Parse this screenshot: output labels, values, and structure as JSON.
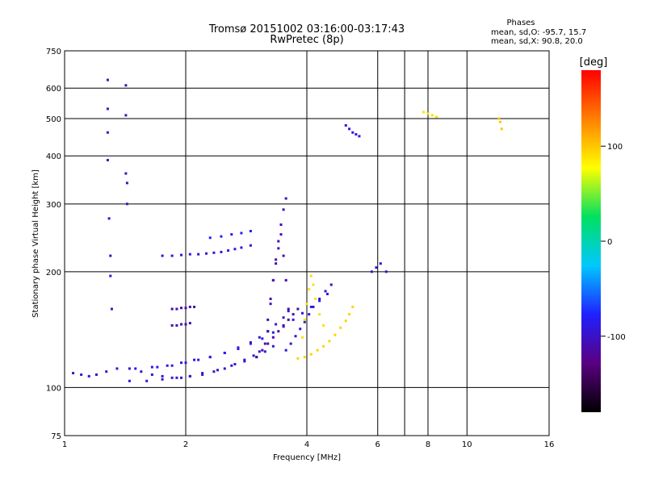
{
  "chart_data": {
    "type": "scatter",
    "title": "Tromsø 20151002 03:16:00-03:17:43",
    "subtitle": "RwPretec (8p)",
    "xlabel": "Frequency [MHz]",
    "ylabel": "Stationary phase Virtual Height [km]",
    "x_scale": "log",
    "y_scale": "log",
    "xlim": [
      1,
      16
    ],
    "ylim": [
      75,
      750
    ],
    "x_ticks": [
      1,
      2,
      4,
      6,
      8,
      10,
      16
    ],
    "x_gridlines": [
      2,
      4,
      6,
      7,
      8,
      10
    ],
    "y_ticks": [
      75,
      100,
      200,
      300,
      400,
      500,
      600,
      750
    ],
    "y_gridlines": [
      100,
      200,
      300,
      400,
      500,
      600
    ],
    "grid": true,
    "phase_stats": {
      "heading": "Phases",
      "line_o": "mean, sd,O: -95.7, 15.7",
      "line_x": "mean, sd,X:  90.8, 20.0"
    },
    "colorbar": {
      "label": "[deg]",
      "range": [
        -180,
        180
      ],
      "ticks": [
        100,
        0,
        -100
      ],
      "colors": [
        "#000000",
        "#5a0080",
        "#2020ff",
        "#00c8ff",
        "#00e060",
        "#ffff00",
        "#ff8000",
        "#ff0000"
      ]
    },
    "traces": [
      {
        "name": "",
        "phase": -95,
        "x": [
          1.05,
          1.1,
          1.15,
          1.2,
          1.27,
          1.35,
          1.45,
          1.55,
          1.65,
          1.75,
          1.85,
          1.95,
          2.05,
          2.2,
          2.35,
          2.5,
          2.65,
          2.8,
          2.95,
          3.05
        ],
        "y": [
          109,
          108,
          107,
          108,
          110,
          112,
          112,
          110,
          108,
          107,
          106,
          106,
          107,
          108,
          110,
          112,
          115,
          118,
          121,
          124
        ]
      },
      {
        "name": "",
        "phase": -95,
        "x": [
          1.45,
          1.6,
          1.75,
          1.9,
          2.05,
          2.2,
          2.4,
          2.6,
          2.8,
          3.0,
          3.15,
          3.3
        ],
        "y": [
          104,
          104,
          105,
          106,
          107,
          109,
          111,
          114,
          117,
          120,
          124,
          128
        ]
      },
      {
        "name": "",
        "phase": -90,
        "x": [
          1.5,
          1.65,
          1.8,
          1.95,
          2.1,
          2.3,
          2.5,
          2.7,
          2.9,
          3.05,
          3.2,
          3.35,
          3.5,
          3.6
        ],
        "y": [
          112,
          113,
          114,
          116,
          118,
          120,
          123,
          127,
          131,
          135,
          140,
          146,
          152,
          158
        ]
      },
      {
        "name": "",
        "phase": -85,
        "x": [
          1.7,
          1.85,
          2.0,
          2.15,
          2.3,
          2.5,
          2.7,
          2.9,
          3.1,
          3.3,
          3.5,
          3.7,
          3.9,
          4.1,
          4.3,
          4.5
        ],
        "y": [
          113,
          114,
          116,
          118,
          120,
          123,
          126,
          130,
          134,
          139,
          144,
          150,
          156,
          162,
          168,
          175
        ]
      },
      {
        "name": "",
        "phase": -115,
        "x": [
          3.0,
          3.1,
          3.2,
          3.3,
          3.4,
          3.5,
          3.6,
          3.7,
          3.8
        ],
        "y": [
          120,
          125,
          130,
          135,
          140,
          145,
          150,
          155,
          160
        ]
      },
      {
        "name": "",
        "phase": -110,
        "x": [
          3.15,
          3.2,
          3.25,
          3.3,
          3.35,
          3.4,
          3.45,
          3.5,
          3.55,
          3.6
        ],
        "y": [
          130,
          150,
          170,
          190,
          210,
          230,
          250,
          220,
          190,
          160
        ]
      },
      {
        "name": "",
        "phase": -105,
        "x": [
          3.2,
          3.25,
          3.3,
          3.35,
          3.4,
          3.45,
          3.5,
          3.55
        ],
        "y": [
          140,
          165,
          190,
          215,
          240,
          265,
          290,
          310
        ]
      },
      {
        "name": "",
        "phase": -95,
        "x": [
          3.55,
          3.65,
          3.75,
          3.85,
          3.95,
          4.05,
          4.15,
          4.3,
          4.45,
          4.6
        ],
        "y": [
          125,
          130,
          136,
          142,
          148,
          155,
          162,
          170,
          178,
          185
        ]
      },
      {
        "name": "",
        "phase": -90,
        "x": [
          1.75,
          1.85,
          1.95,
          2.05,
          2.15,
          2.25,
          2.35,
          2.45,
          2.55,
          2.65,
          2.75,
          2.9
        ],
        "y": [
          220,
          220,
          221,
          222,
          222,
          223,
          224,
          225,
          227,
          229,
          231,
          234
        ]
      },
      {
        "name": "",
        "phase": -80,
        "x": [
          2.3,
          2.45,
          2.6,
          2.75,
          2.9
        ],
        "y": [
          245,
          247,
          250,
          252,
          255
        ]
      },
      {
        "name": "",
        "phase": -110,
        "x": [
          1.85,
          1.9,
          1.95,
          2.0,
          2.05,
          2.1
        ],
        "y": [
          160,
          160,
          161,
          161,
          162,
          162
        ]
      },
      {
        "name": "",
        "phase": -110,
        "x": [
          1.85,
          1.9,
          1.95,
          2.0,
          2.05
        ],
        "y": [
          145,
          145,
          146,
          146,
          147
        ]
      },
      {
        "name": "",
        "phase": 95,
        "x": [
          3.8,
          3.95,
          4.1,
          4.25,
          4.4,
          4.55,
          4.7,
          4.85,
          5.0,
          5.1,
          5.2
        ],
        "y": [
          119,
          120,
          122,
          125,
          128,
          132,
          137,
          143,
          149,
          155,
          162
        ]
      },
      {
        "name": "",
        "phase": 90,
        "x": [
          3.9,
          3.95,
          4.0,
          4.05,
          4.1,
          4.15,
          4.2,
          4.3,
          4.4
        ],
        "y": [
          135,
          150,
          165,
          180,
          195,
          185,
          170,
          155,
          145
        ]
      },
      {
        "name": "",
        "phase": -90,
        "x": [
          5.0,
          5.1,
          5.2,
          5.3,
          5.4
        ],
        "y": [
          480,
          470,
          460,
          455,
          450
        ]
      },
      {
        "name": "",
        "phase": -95,
        "x": [
          1.28,
          1.28,
          1.28,
          1.28,
          1.29,
          1.3,
          1.3,
          1.31
        ],
        "y": [
          630,
          530,
          460,
          390,
          275,
          220,
          195,
          160
        ]
      },
      {
        "name": "",
        "phase": -100,
        "x": [
          1.42,
          1.42,
          1.42,
          1.43,
          1.43
        ],
        "y": [
          610,
          510,
          360,
          340,
          300
        ]
      },
      {
        "name": "",
        "phase": 90,
        "x": [
          7.8,
          8.0,
          8.2,
          8.4
        ],
        "y": [
          520,
          515,
          510,
          505
        ]
      },
      {
        "name": "",
        "phase": 100,
        "x": [
          12.0,
          12.1,
          12.2
        ],
        "y": [
          500,
          490,
          470
        ]
      },
      {
        "name": "",
        "phase": -100,
        "x": [
          5.8,
          5.95,
          6.1,
          6.3
        ],
        "y": [
          200,
          205,
          210,
          200
        ]
      }
    ]
  }
}
